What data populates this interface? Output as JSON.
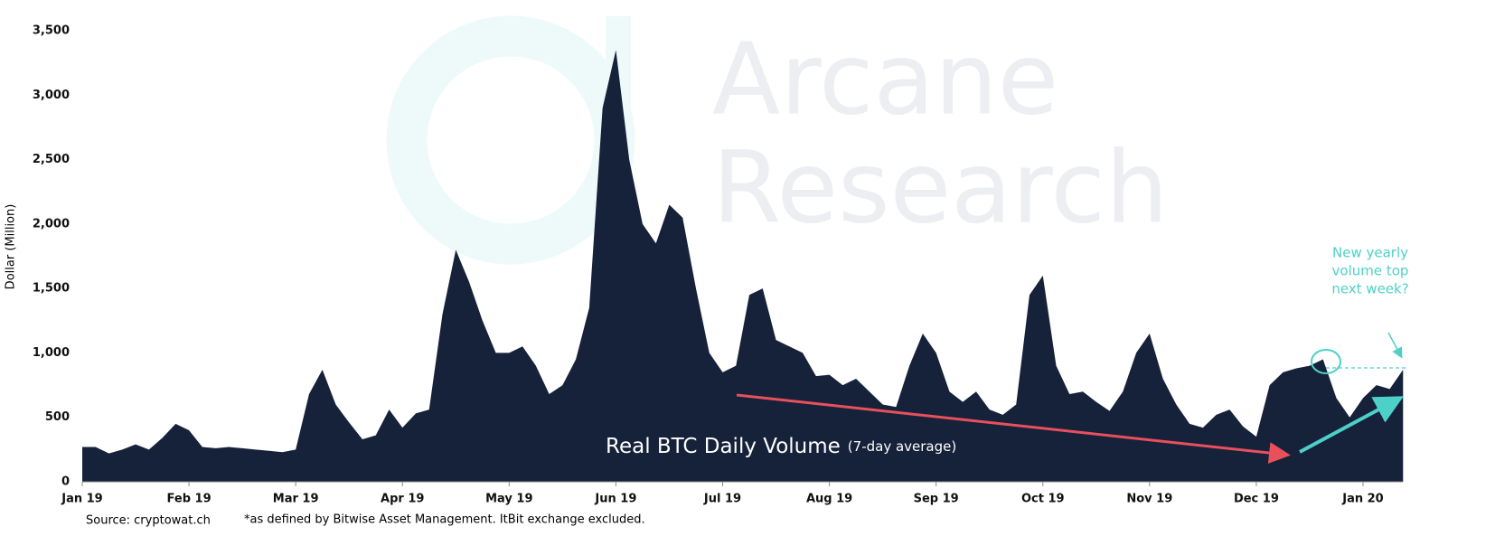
{
  "chart_data": {
    "type": "area",
    "title": "Real BTC Daily Volume",
    "subtitle": "(7-day average)",
    "y_label": "Dollar (Million)",
    "source": "Source: cryptowat.ch",
    "footnote": "*as defined by Bitwise Asset Management. ItBit exchange excluded.",
    "watermark": [
      "Arcane",
      "Research"
    ],
    "annotation": [
      "New yearly",
      "volume top",
      "next week?"
    ],
    "color": "#16213a",
    "categories": [
      "Jan 19",
      null,
      null,
      null,
      null,
      null,
      null,
      null,
      "Feb 19",
      null,
      null,
      null,
      null,
      null,
      null,
      null,
      "Mar 19",
      null,
      null,
      null,
      null,
      null,
      null,
      null,
      "Apr 19",
      null,
      null,
      null,
      null,
      null,
      null,
      null,
      "May 19",
      null,
      null,
      null,
      null,
      null,
      null,
      null,
      "Jun 19",
      null,
      null,
      null,
      null,
      null,
      null,
      null,
      "Jul 19",
      null,
      null,
      null,
      null,
      null,
      null,
      null,
      "Aug 19",
      null,
      null,
      null,
      null,
      null,
      null,
      null,
      "Sep 19",
      null,
      null,
      null,
      null,
      null,
      null,
      null,
      "Oct 19",
      null,
      null,
      null,
      null,
      null,
      null,
      null,
      "Nov 19",
      null,
      null,
      null,
      null,
      null,
      null,
      null,
      "Dec 19",
      null,
      null,
      null,
      null,
      null,
      null,
      null,
      "Jan 20",
      null,
      null,
      null
    ],
    "values": [
      270,
      270,
      220,
      250,
      290,
      250,
      340,
      450,
      400,
      270,
      260,
      270,
      260,
      250,
      240,
      230,
      250,
      680,
      870,
      600,
      460,
      330,
      360,
      560,
      420,
      530,
      560,
      1300,
      1800,
      1550,
      1250,
      1000,
      1000,
      1050,
      900,
      680,
      750,
      950,
      1350,
      2900,
      3350,
      2500,
      2000,
      1850,
      2150,
      2050,
      1500,
      1000,
      850,
      900,
      1450,
      1500,
      1100,
      1050,
      1000,
      820,
      830,
      750,
      800,
      700,
      600,
      580,
      900,
      1150,
      1000,
      700,
      620,
      700,
      560,
      520,
      600,
      1450,
      1600,
      900,
      680,
      700,
      620,
      550,
      700,
      1000,
      1150,
      800,
      600,
      450,
      420,
      520,
      560,
      430,
      350,
      750,
      850,
      880,
      900,
      950,
      650,
      500,
      650,
      750,
      720,
      870
    ],
    "ylim": [
      0,
      3500
    ],
    "yticks": [
      0,
      500,
      {
        "value": 1000,
        "label": "1,000"
      },
      {
        "value": 1500,
        "label": "1,500"
      },
      {
        "value": 2000,
        "label": "2,000"
      },
      {
        "value": 2500,
        "label": "2,500"
      },
      {
        "value": 3000,
        "label": "3,000"
      },
      {
        "value": 3500,
        "label": "3,500"
      }
    ]
  }
}
